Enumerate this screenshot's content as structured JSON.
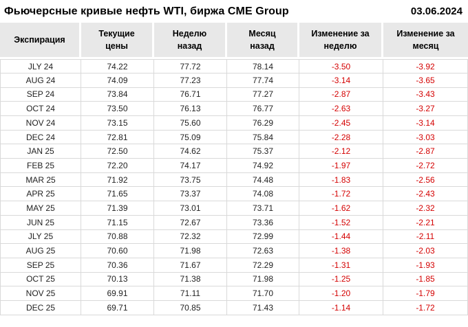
{
  "header": {
    "title": "Фьючерсные кривые нефть WTI, биржа CME Group",
    "date": "03.06.2024"
  },
  "colors": {
    "negative_text": "#d40000",
    "header_bg": "#e8e8e8",
    "border": "#d9d9d9"
  },
  "chart_data": {
    "type": "table",
    "title": "Фьючерсные кривые нефть WTI, биржа CME Group",
    "date": "03.06.2024",
    "columns": [
      "Экспирация",
      "Текущие\nцены",
      "Неделю\nназад",
      "Месяц\nназад",
      "Изменение за\nнеделю",
      "Изменение за\nмесяц"
    ],
    "rows": [
      [
        "JLY 24",
        "74.22",
        "77.72",
        "78.14",
        "-3.50",
        "-3.92"
      ],
      [
        "AUG 24",
        "74.09",
        "77.23",
        "77.74",
        "-3.14",
        "-3.65"
      ],
      [
        "SEP 24",
        "73.84",
        "76.71",
        "77.27",
        "-2.87",
        "-3.43"
      ],
      [
        "OCT 24",
        "73.50",
        "76.13",
        "76.77",
        "-2.63",
        "-3.27"
      ],
      [
        "NOV 24",
        "73.15",
        "75.60",
        "76.29",
        "-2.45",
        "-3.14"
      ],
      [
        "DEC 24",
        "72.81",
        "75.09",
        "75.84",
        "-2.28",
        "-3.03"
      ],
      [
        "JAN 25",
        "72.50",
        "74.62",
        "75.37",
        "-2.12",
        "-2.87"
      ],
      [
        "FEB 25",
        "72.20",
        "74.17",
        "74.92",
        "-1.97",
        "-2.72"
      ],
      [
        "MAR 25",
        "71.92",
        "73.75",
        "74.48",
        "-1.83",
        "-2.56"
      ],
      [
        "APR 25",
        "71.65",
        "73.37",
        "74.08",
        "-1.72",
        "-2.43"
      ],
      [
        "MAY 25",
        "71.39",
        "73.01",
        "73.71",
        "-1.62",
        "-2.32"
      ],
      [
        "JUN 25",
        "71.15",
        "72.67",
        "73.36",
        "-1.52",
        "-2.21"
      ],
      [
        "JLY 25",
        "70.88",
        "72.32",
        "72.99",
        "-1.44",
        "-2.11"
      ],
      [
        "AUG 25",
        "70.60",
        "71.98",
        "72.63",
        "-1.38",
        "-2.03"
      ],
      [
        "SEP 25",
        "70.36",
        "71.67",
        "72.29",
        "-1.31",
        "-1.93"
      ],
      [
        "OCT 25",
        "70.13",
        "71.38",
        "71.98",
        "-1.25",
        "-1.85"
      ],
      [
        "NOV 25",
        "69.91",
        "71.11",
        "71.70",
        "-1.20",
        "-1.79"
      ],
      [
        "DEC 25",
        "69.71",
        "70.85",
        "71.43",
        "-1.14",
        "-1.72"
      ]
    ]
  }
}
